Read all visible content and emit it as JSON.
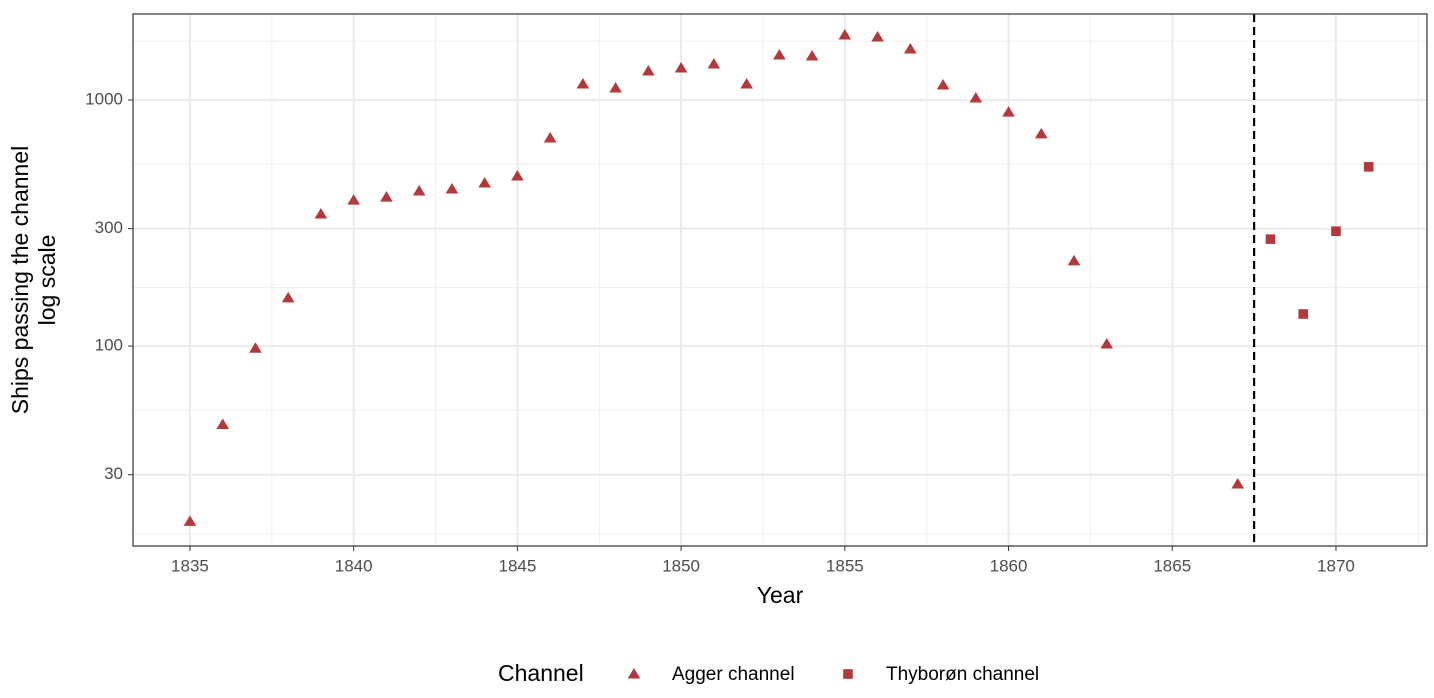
{
  "chart_data": {
    "type": "scatter",
    "xlabel": "Year",
    "ylabel": [
      "Ships passing the channel",
      "log scale"
    ],
    "xlim": [
      1833.26,
      1872.78
    ],
    "ylim": [
      15.4,
      2236
    ],
    "log_y": true,
    "xticks": [
      1835,
      1840,
      1845,
      1850,
      1855,
      1860,
      1865,
      1870
    ],
    "yticks": [
      30,
      100,
      300,
      1000
    ],
    "xminor": [
      1837.5,
      1842.5,
      1847.5,
      1852.5,
      1857.5,
      1862.5,
      1867.5,
      1872.5
    ],
    "yminor": [
      17.3,
      54.8,
      173,
      548,
      1732
    ],
    "grid": true,
    "vline": 1867.5,
    "legend_title": "Channel",
    "legend_position": "bottom",
    "series": [
      {
        "name": "Agger channel",
        "color": "#b5393a",
        "marker": "triangle",
        "x": [
          1835,
          1836,
          1837,
          1838,
          1839,
          1840,
          1841,
          1842,
          1843,
          1844,
          1845,
          1846,
          1847,
          1848,
          1849,
          1850,
          1851,
          1852,
          1853,
          1854,
          1855,
          1856,
          1857,
          1858,
          1859,
          1860,
          1861,
          1862,
          1863,
          1867
        ],
        "values": [
          19.4,
          48,
          98,
          157,
          344,
          392,
          403,
          427,
          435,
          460,
          491,
          701,
          1161,
          1119,
          1312,
          1349,
          1400,
          1161,
          1523,
          1510,
          1838,
          1803,
          1611,
          1151,
          1019,
          893,
          728,
          222,
          102,
          27.5
        ]
      },
      {
        "name": "Thyborøn channel",
        "color": "#b5393a",
        "marker": "square",
        "x": [
          1868,
          1869,
          1870,
          1871
        ],
        "values": [
          272,
          135,
          293,
          535
        ]
      }
    ]
  }
}
